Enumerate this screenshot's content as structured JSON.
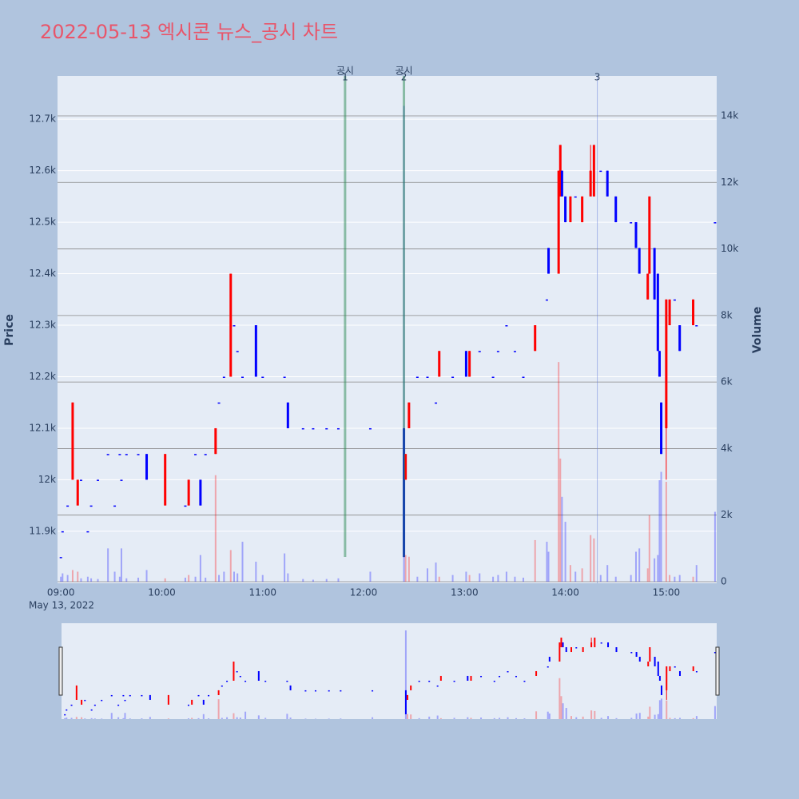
{
  "chart_data": {
    "type": "candlestick",
    "title": "2022-05-13 엑시콘 뉴스_공시 차트",
    "y_label": "Price",
    "y2_label": "Volume",
    "x_date_label": "May 13, 2022",
    "increasing_color": "#ff0000",
    "decreasing_color": "#0000ff",
    "x": [
      "09:00",
      "09:01",
      "09:04",
      "09:07",
      "09:10",
      "09:12",
      "09:16",
      "09:18",
      "09:22",
      "09:28",
      "09:32",
      "09:35",
      "09:36",
      "09:39",
      "09:46",
      "09:51",
      "10:02",
      "10:14",
      "10:16",
      "10:20",
      "10:23",
      "10:26",
      "10:32",
      "10:34",
      "10:37",
      "10:41",
      "10:43",
      "10:45",
      "10:48",
      "10:56",
      "11:00",
      "11:13",
      "11:15",
      "11:24",
      "11:30",
      "11:38",
      "11:45",
      "12:04",
      "12:24",
      "12:25",
      "12:27",
      "12:32",
      "12:38",
      "12:43",
      "12:45",
      "12:53",
      "13:01",
      "13:03",
      "13:09",
      "13:17",
      "13:20",
      "13:25",
      "13:30",
      "13:35",
      "13:42",
      "13:49",
      "13:50",
      "13:56",
      "13:57",
      "13:58",
      "14:00",
      "14:03",
      "14:06",
      "14:10",
      "14:15",
      "14:17",
      "14:21",
      "14:25",
      "14:30",
      "14:39",
      "14:42",
      "14:44",
      "14:49",
      "14:50",
      "14:53",
      "14:55",
      "14:56",
      "14:57",
      "15:00",
      "15:02",
      "15:05",
      "15:08",
      "15:16",
      "15:18",
      "15:29"
    ],
    "open": [
      11850,
      11900,
      11950,
      12000,
      11950,
      12000,
      11900,
      11950,
      12000,
      12050,
      11950,
      12050,
      12000,
      12050,
      12050,
      12050,
      11950,
      11950,
      11950,
      12050,
      12000,
      12050,
      12050,
      12150,
      12200,
      12200,
      12300,
      12250,
      12200,
      12300,
      12200,
      12200,
      12150,
      12100,
      12100,
      12100,
      12100,
      12100,
      12100,
      12000,
      12100,
      12200,
      12200,
      12150,
      12200,
      12200,
      12250,
      12200,
      12250,
      12200,
      12250,
      12300,
      12250,
      12200,
      12250,
      12350,
      12450,
      12400,
      12550,
      12600,
      12550,
      12500,
      12550,
      12500,
      12550,
      12550,
      12600,
      12600,
      12550,
      12500,
      12500,
      12450,
      12350,
      12400,
      12450,
      12400,
      12250,
      12150,
      12100,
      12300,
      12350,
      12300,
      12300,
      12300,
      12500
    ],
    "high": [
      11850,
      11900,
      11950,
      12150,
      12000,
      12000,
      11900,
      11950,
      12000,
      12050,
      11950,
      12050,
      12000,
      12050,
      12050,
      12050,
      12050,
      11950,
      12000,
      12050,
      12000,
      12050,
      12100,
      12150,
      12200,
      12400,
      12300,
      12250,
      12200,
      12300,
      12200,
      12200,
      12150,
      12100,
      12100,
      12100,
      12100,
      12100,
      12100,
      12050,
      12150,
      12200,
      12200,
      12150,
      12250,
      12200,
      12250,
      12250,
      12250,
      12200,
      12250,
      12300,
      12250,
      12200,
      12300,
      12350,
      12450,
      12600,
      12650,
      12600,
      12550,
      12550,
      12550,
      12550,
      12650,
      12650,
      12600,
      12600,
      12550,
      12500,
      12500,
      12450,
      12400,
      12550,
      12450,
      12400,
      12250,
      12150,
      12350,
      12350,
      12350,
      12300,
      12350,
      12300,
      12500
    ],
    "low": [
      11850,
      11900,
      11950,
      12000,
      11950,
      12000,
      11900,
      11950,
      12000,
      12050,
      11950,
      12050,
      12000,
      12050,
      12050,
      12000,
      11950,
      11950,
      11950,
      12050,
      11950,
      12050,
      12050,
      12150,
      12200,
      12200,
      12300,
      12250,
      12200,
      12200,
      12200,
      12200,
      12100,
      12100,
      12100,
      12100,
      12100,
      12100,
      11850,
      12000,
      12100,
      12200,
      12200,
      12150,
      12200,
      12200,
      12200,
      12200,
      12250,
      12200,
      12250,
      12300,
      12250,
      12200,
      12250,
      12350,
      12400,
      12400,
      12550,
      12550,
      12500,
      12500,
      12550,
      12500,
      12550,
      12550,
      12600,
      12550,
      12500,
      12500,
      12450,
      12400,
      12350,
      12400,
      12350,
      12250,
      12200,
      12050,
      12000,
      12300,
      12350,
      12250,
      12300,
      12300,
      12500
    ],
    "close": [
      11850,
      11900,
      11950,
      12150,
      12000,
      12000,
      11900,
      11950,
      12000,
      12050,
      11950,
      12050,
      12000,
      12050,
      12050,
      12000,
      12050,
      11950,
      12000,
      12050,
      11950,
      12050,
      12100,
      12150,
      12200,
      12400,
      12300,
      12250,
      12200,
      12200,
      12200,
      12200,
      12100,
      12100,
      12100,
      12100,
      12100,
      12100,
      11850,
      12050,
      12150,
      12200,
      12200,
      12150,
      12250,
      12200,
      12200,
      12250,
      12250,
      12200,
      12250,
      12300,
      12250,
      12200,
      12300,
      12350,
      12400,
      12600,
      12650,
      12550,
      12500,
      12550,
      12550,
      12550,
      12600,
      12650,
      12600,
      12550,
      12500,
      12500,
      12450,
      12400,
      12400,
      12550,
      12350,
      12250,
      12200,
      12050,
      12350,
      12350,
      12350,
      12250,
      12350,
      12300,
      12500
    ],
    "volume": [
      150,
      250,
      200,
      350,
      300,
      100,
      150,
      100,
      80,
      1000,
      300,
      150,
      1000,
      100,
      120,
      350,
      100,
      120,
      200,
      150,
      800,
      120,
      3200,
      200,
      300,
      950,
      300,
      250,
      1200,
      600,
      200,
      850,
      250,
      80,
      60,
      80,
      100,
      300,
      14300,
      800,
      750,
      150,
      400,
      575,
      150,
      200,
      300,
      200,
      250,
      150,
      200,
      300,
      150,
      120,
      1250,
      1200,
      900,
      6600,
      3700,
      2550,
      1800,
      500,
      300,
      400,
      1400,
      1300,
      200,
      500,
      150,
      200,
      900,
      1000,
      400,
      2000,
      700,
      800,
      3050,
      3300,
      3000,
      200,
      150,
      200,
      150,
      500,
      2100
    ],
    "xlim": [
      "08:58",
      "15:30"
    ],
    "xticks": [
      "09:00",
      "10:00",
      "11:00",
      "12:00",
      "13:00",
      "14:00",
      "15:00"
    ],
    "ylim": [
      11799,
      12784
    ],
    "yticks": [
      {
        "value": 11900,
        "label": "11.9k"
      },
      {
        "value": 12000,
        "label": "12k"
      },
      {
        "value": 12100,
        "label": "12.1k"
      },
      {
        "value": 12200,
        "label": "12.2k"
      },
      {
        "value": 12300,
        "label": "12.3k"
      },
      {
        "value": 12400,
        "label": "12.4k"
      },
      {
        "value": 12500,
        "label": "12.5k"
      },
      {
        "value": 12600,
        "label": "12.6k"
      },
      {
        "value": 12700,
        "label": "12.7k"
      }
    ],
    "y2lim": [
      0,
      15200
    ],
    "y2ticks": [
      0,
      {
        "value": 2000,
        "label": "2k"
      },
      {
        "value": 4000,
        "label": "4k"
      },
      {
        "value": 6000,
        "label": "6k"
      },
      {
        "value": 8000,
        "label": "8k"
      },
      {
        "value": 10000,
        "label": "10k"
      },
      {
        "value": 12000,
        "label": "12k"
      },
      {
        "value": 14000,
        "label": "14k"
      }
    ],
    "annotations": [
      {
        "x": "11:49",
        "number": "1",
        "text": "공시",
        "color": "#2e8b57"
      },
      {
        "x": "12:24",
        "number": "2",
        "text": "공시",
        "color": "#2e8b57"
      },
      {
        "x": "14:19",
        "number": "3",
        "color": "#6a7fdb"
      }
    ]
  }
}
